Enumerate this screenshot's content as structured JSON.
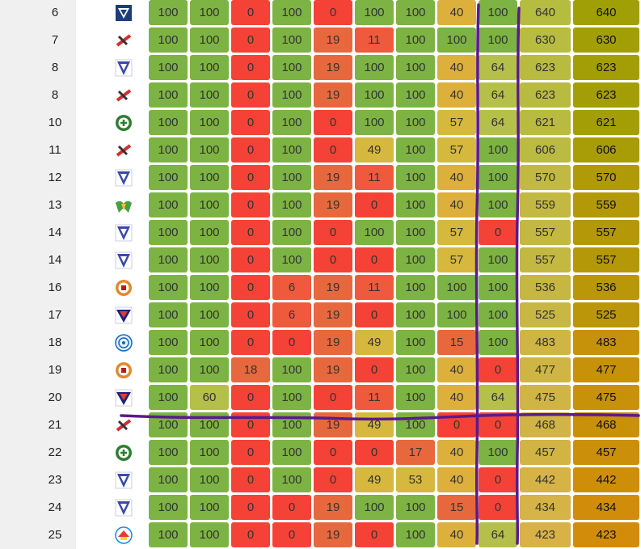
{
  "colors": {
    "green": "#7cb342",
    "red": "#f44336",
    "orange": "#e8683e",
    "olive_green": "#b5c04a",
    "yellow": "#ddb03c",
    "annotation": "#5b1a8c"
  },
  "rows": [
    {
      "rank": "6",
      "logo": "shield-icon",
      "scores": [
        "100",
        "100",
        "0",
        "100",
        "0",
        "100",
        "100",
        "40",
        "100"
      ],
      "sum": "640",
      "total": "640"
    },
    {
      "rank": "7",
      "logo": "flag-icon",
      "scores": [
        "100",
        "100",
        "0",
        "100",
        "19",
        "11",
        "100",
        "100",
        "100"
      ],
      "sum": "630",
      "total": "630"
    },
    {
      "rank": "8",
      "logo": "pennant-icon",
      "scores": [
        "100",
        "100",
        "0",
        "100",
        "19",
        "100",
        "100",
        "40",
        "64"
      ],
      "sum": "623",
      "total": "623"
    },
    {
      "rank": "8",
      "logo": "flag-icon",
      "scores": [
        "100",
        "100",
        "0",
        "100",
        "19",
        "100",
        "100",
        "40",
        "64"
      ],
      "sum": "623",
      "total": "623"
    },
    {
      "rank": "10",
      "logo": "emblem-icon",
      "scores": [
        "100",
        "100",
        "0",
        "100",
        "0",
        "100",
        "100",
        "57",
        "64"
      ],
      "sum": "621",
      "total": "621"
    },
    {
      "rank": "11",
      "logo": "flag-icon",
      "scores": [
        "100",
        "100",
        "0",
        "100",
        "0",
        "49",
        "100",
        "57",
        "100"
      ],
      "sum": "606",
      "total": "606"
    },
    {
      "rank": "12",
      "logo": "pennant-icon",
      "scores": [
        "100",
        "100",
        "0",
        "100",
        "19",
        "11",
        "100",
        "40",
        "100"
      ],
      "sum": "570",
      "total": "570"
    },
    {
      "rank": "13",
      "logo": "wings-icon",
      "scores": [
        "100",
        "100",
        "0",
        "100",
        "19",
        "0",
        "100",
        "40",
        "100"
      ],
      "sum": "559",
      "total": "559"
    },
    {
      "rank": "14",
      "logo": "pennant-icon",
      "scores": [
        "100",
        "100",
        "0",
        "100",
        "0",
        "100",
        "100",
        "57",
        "0"
      ],
      "sum": "557",
      "total": "557"
    },
    {
      "rank": "14",
      "logo": "pennant-icon",
      "scores": [
        "100",
        "100",
        "0",
        "100",
        "0",
        "0",
        "100",
        "57",
        "100"
      ],
      "sum": "557",
      "total": "557"
    },
    {
      "rank": "16",
      "logo": "medal-icon",
      "scores": [
        "100",
        "100",
        "0",
        "6",
        "19",
        "11",
        "100",
        "100",
        "100"
      ],
      "sum": "536",
      "total": "536"
    },
    {
      "rank": "17",
      "logo": "crest-icon",
      "scores": [
        "100",
        "100",
        "0",
        "6",
        "19",
        "0",
        "100",
        "100",
        "100"
      ],
      "sum": "525",
      "total": "525"
    },
    {
      "rank": "18",
      "logo": "seal-icon",
      "scores": [
        "100",
        "100",
        "0",
        "0",
        "19",
        "49",
        "100",
        "15",
        "100"
      ],
      "sum": "483",
      "total": "483"
    },
    {
      "rank": "19",
      "logo": "medal-icon",
      "scores": [
        "100",
        "100",
        "18",
        "100",
        "19",
        "0",
        "100",
        "40",
        "0"
      ],
      "sum": "477",
      "total": "477"
    },
    {
      "rank": "20",
      "logo": "crest-icon",
      "scores": [
        "100",
        "60",
        "0",
        "100",
        "0",
        "11",
        "100",
        "40",
        "64"
      ],
      "sum": "475",
      "total": "475"
    },
    {
      "rank": "21",
      "logo": "flag-icon",
      "scores": [
        "100",
        "100",
        "0",
        "100",
        "19",
        "49",
        "100",
        "0",
        "0"
      ],
      "sum": "468",
      "total": "468"
    },
    {
      "rank": "22",
      "logo": "emblem-icon",
      "scores": [
        "100",
        "100",
        "0",
        "100",
        "0",
        "0",
        "17",
        "40",
        "100"
      ],
      "sum": "457",
      "total": "457"
    },
    {
      "rank": "23",
      "logo": "pennant-icon",
      "scores": [
        "100",
        "100",
        "0",
        "100",
        "0",
        "49",
        "53",
        "40",
        "0"
      ],
      "sum": "442",
      "total": "442"
    },
    {
      "rank": "24",
      "logo": "pennant-icon",
      "scores": [
        "100",
        "100",
        "0",
        "0",
        "19",
        "100",
        "100",
        "15",
        "0"
      ],
      "sum": "434",
      "total": "434"
    },
    {
      "rank": "25",
      "logo": "badge-icon",
      "scores": [
        "100",
        "100",
        "0",
        "0",
        "19",
        "0",
        "100",
        "40",
        "64"
      ],
      "sum": "423",
      "total": "423"
    }
  ]
}
